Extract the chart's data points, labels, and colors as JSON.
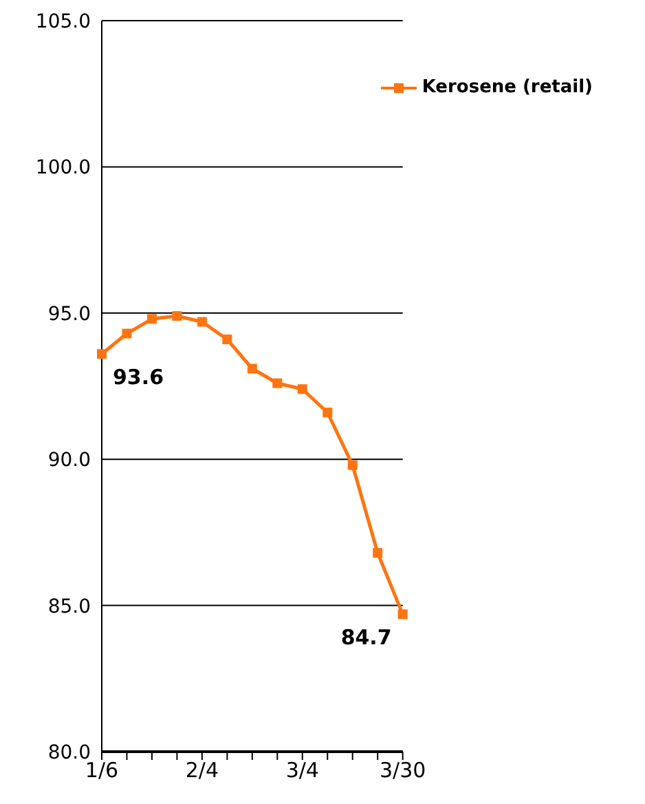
{
  "chart_data": {
    "type": "line",
    "categories": [
      "1/6",
      null,
      null,
      null,
      "2/4",
      null,
      null,
      null,
      "3/4",
      null,
      null,
      null,
      "3/30"
    ],
    "series": [
      {
        "name": "Kerosene (retail)",
        "color": "#ff7410",
        "values": [
          93.6,
          94.3,
          94.8,
          94.9,
          94.7,
          94.1,
          93.1,
          92.6,
          92.4,
          91.6,
          89.8,
          86.8,
          84.7
        ],
        "value_labels": [
          "93.6",
          null,
          null,
          null,
          null,
          null,
          null,
          null,
          null,
          null,
          null,
          null,
          "84.7"
        ]
      }
    ],
    "ylim": [
      80,
      105
    ],
    "yticks": [
      {
        "value": 80,
        "label": "80.0"
      },
      {
        "value": 85,
        "label": "85.0"
      },
      {
        "value": 90,
        "label": "90.0"
      },
      {
        "value": 95,
        "label": "95.0"
      },
      {
        "value": 100,
        "label": "100.0"
      },
      {
        "value": 105,
        "label": "105.0"
      }
    ],
    "grid": "y",
    "legend": "top right",
    "marker": "square",
    "line_style": "solid"
  }
}
